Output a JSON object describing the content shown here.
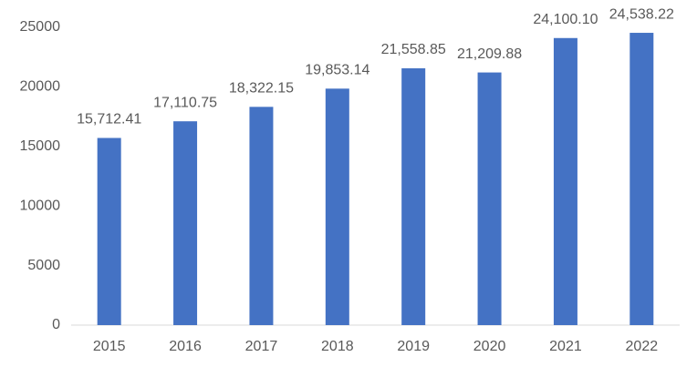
{
  "chart_data": {
    "type": "bar",
    "categories": [
      "2015",
      "2016",
      "2017",
      "2018",
      "2019",
      "2020",
      "2021",
      "2022"
    ],
    "values": [
      15712.41,
      17110.75,
      18322.15,
      19853.14,
      21558.85,
      21209.88,
      24100.1,
      24538.22
    ],
    "value_labels": [
      "15,712.41",
      "17,110.75",
      "18,322.15",
      "19,853.14",
      "21,558.85",
      "21,209.88",
      "24,100.10",
      "24,538.22"
    ],
    "color": "#4472c4",
    "ylim": [
      0,
      25000
    ],
    "yticks": [
      0,
      5000,
      10000,
      15000,
      20000,
      25000
    ],
    "grid": false
  }
}
